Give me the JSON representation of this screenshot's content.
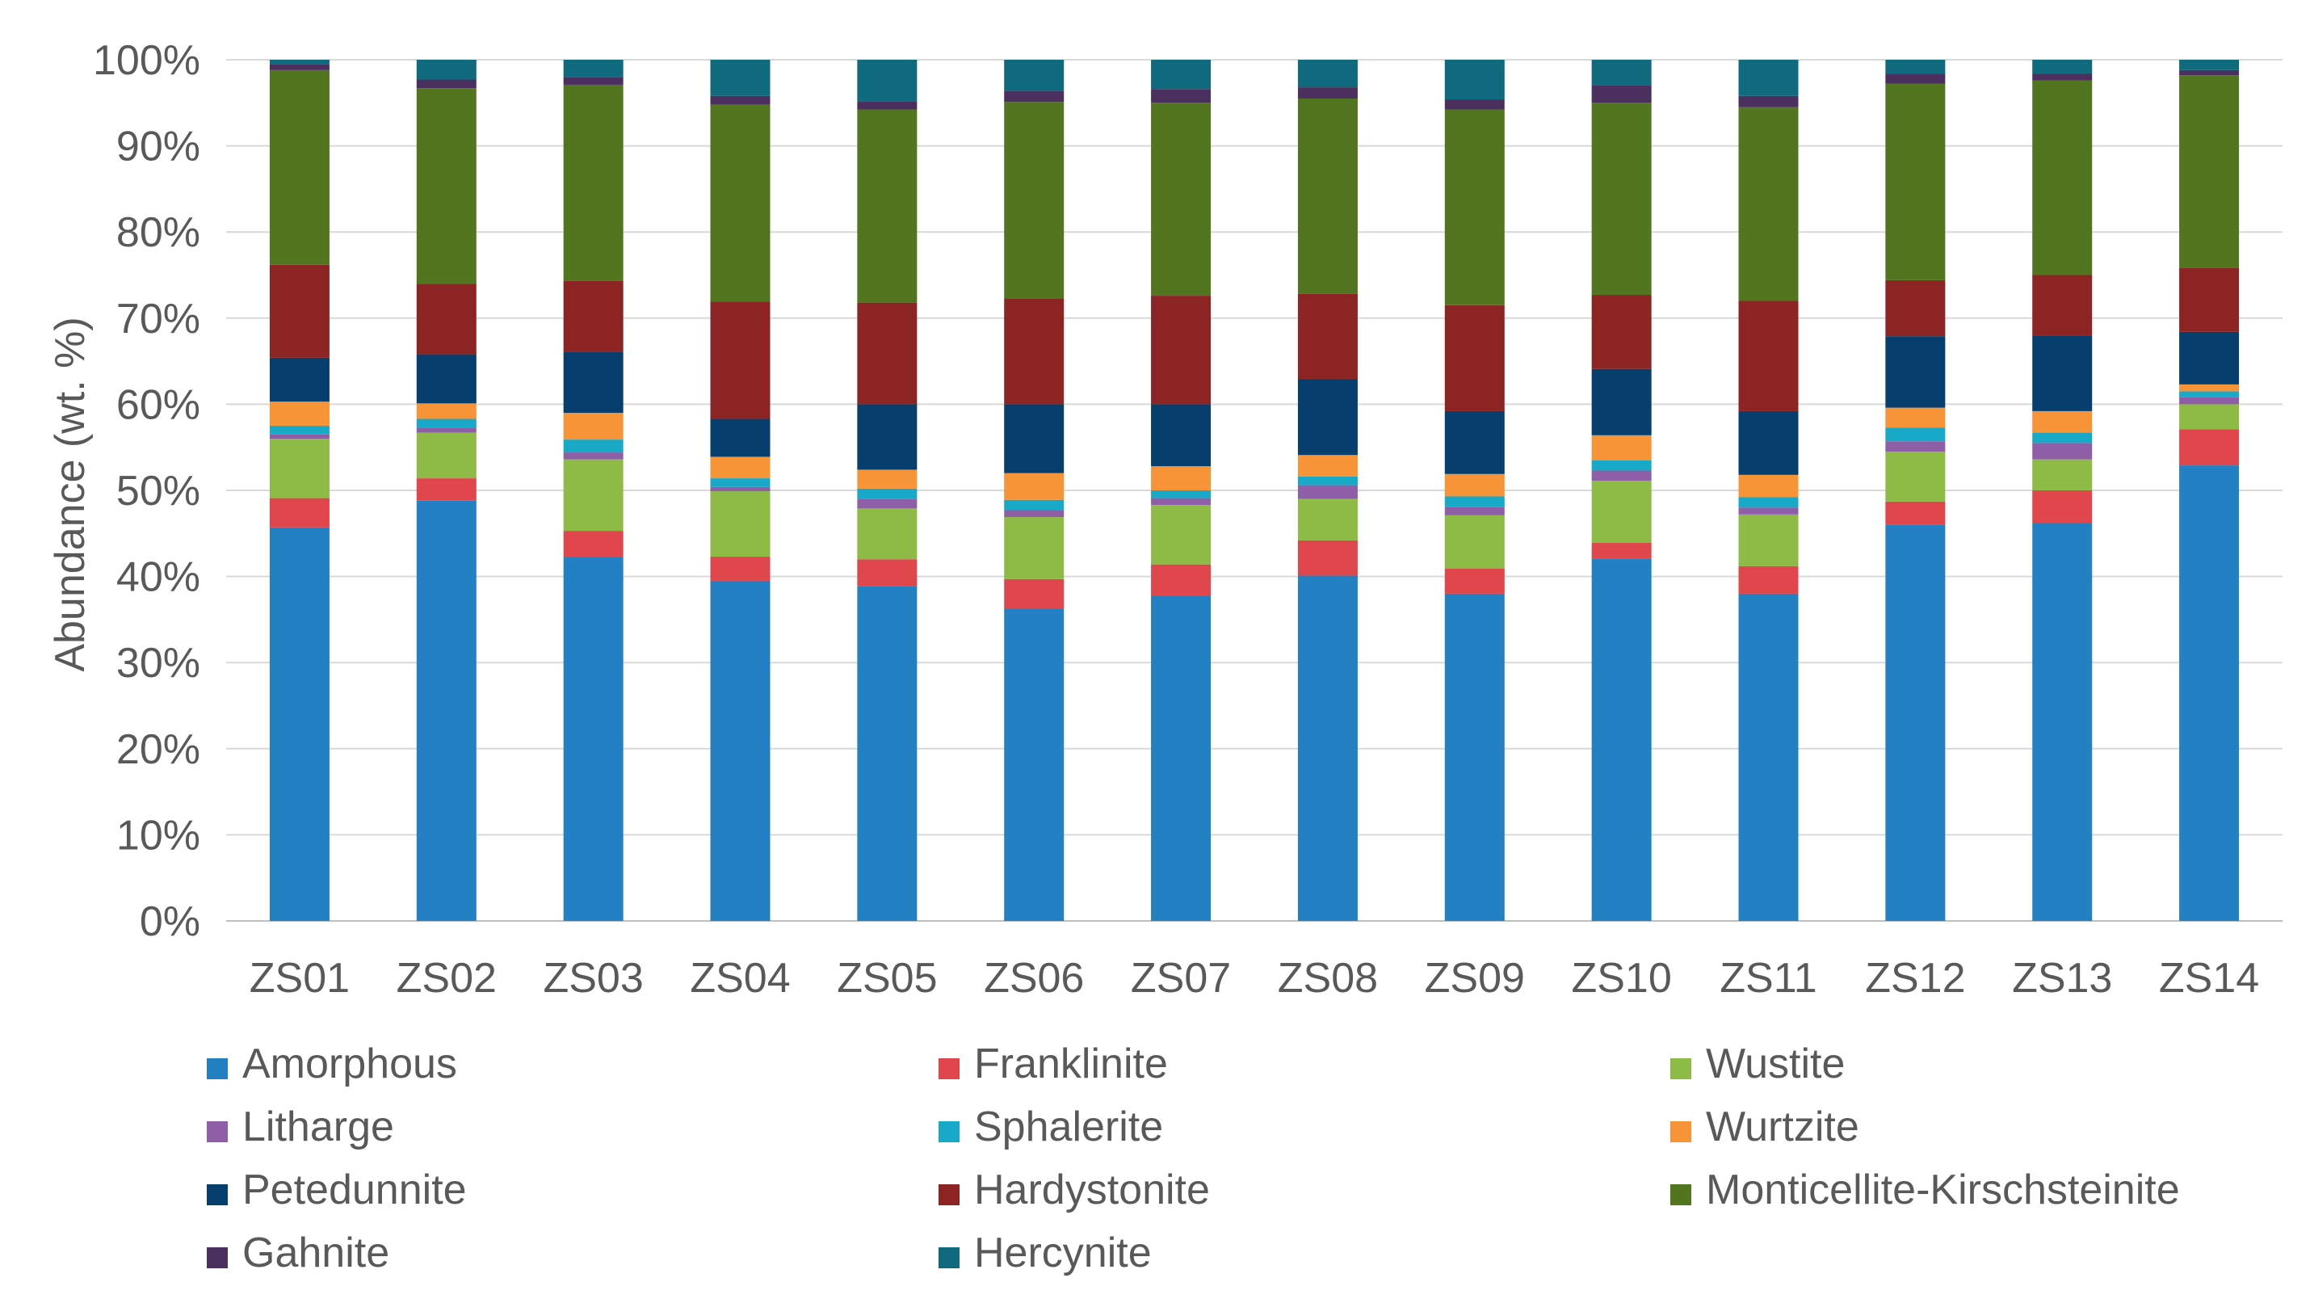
{
  "chart_data": {
    "type": "stacked-bar-100",
    "title": "",
    "xlabel": "",
    "ylabel": "Abundance (wt. %)",
    "ylim": [
      0,
      100
    ],
    "ytick_labels": [
      "0%",
      "10%",
      "20%",
      "30%",
      "40%",
      "50%",
      "60%",
      "70%",
      "80%",
      "90%",
      "100%"
    ],
    "grid": true,
    "legend_position": "bottom",
    "categories": [
      "ZS01",
      "ZS02",
      "ZS03",
      "ZS04",
      "ZS05",
      "ZS06",
      "ZS07",
      "ZS08",
      "ZS09",
      "ZS10",
      "ZS11",
      "ZS12",
      "ZS13",
      "ZS14"
    ],
    "series": [
      {
        "name": "Amorphous",
        "color": "#2381c3",
        "values": [
          45.7,
          48.8,
          42.3,
          39.5,
          38.9,
          36.3,
          37.8,
          40.1,
          38.0,
          42.1,
          38.0,
          46.0,
          46.2,
          52.9
        ]
      },
      {
        "name": "Franklinite",
        "color": "#e0474c",
        "values": [
          3.4,
          2.6,
          3.0,
          2.8,
          3.1,
          3.4,
          3.6,
          4.1,
          2.9,
          1.8,
          3.2,
          2.7,
          3.8,
          4.2
        ]
      },
      {
        "name": "Wustite",
        "color": "#8dbb46",
        "values": [
          6.9,
          5.3,
          8.3,
          7.6,
          5.9,
          7.2,
          6.9,
          4.8,
          6.2,
          7.2,
          6.0,
          5.8,
          3.6,
          2.9
        ]
      },
      {
        "name": "Litharge",
        "color": "#8e5fa7",
        "values": [
          0.5,
          0.6,
          0.8,
          0.5,
          1.1,
          0.8,
          0.8,
          1.6,
          1.0,
          1.2,
          0.8,
          1.2,
          1.9,
          0.8
        ]
      },
      {
        "name": "Sphalerite",
        "color": "#18a9c8",
        "values": [
          1.0,
          1.0,
          1.5,
          1.0,
          1.2,
          1.2,
          0.9,
          1.0,
          1.2,
          1.2,
          1.2,
          1.6,
          1.2,
          0.7
        ]
      },
      {
        "name": "Wurtzite",
        "color": "#f79437",
        "values": [
          2.8,
          1.8,
          3.1,
          2.5,
          2.2,
          3.1,
          2.8,
          2.5,
          2.6,
          2.9,
          2.6,
          2.3,
          2.5,
          0.8
        ]
      },
      {
        "name": "Petedunnite",
        "color": "#063f6e",
        "values": [
          5.1,
          5.7,
          7.1,
          4.4,
          7.6,
          8.0,
          7.2,
          8.8,
          7.3,
          7.7,
          7.4,
          8.3,
          8.8,
          6.1
        ]
      },
      {
        "name": "Hardystonite",
        "color": "#8b2423",
        "values": [
          10.8,
          8.2,
          8.2,
          13.6,
          11.8,
          12.3,
          12.6,
          9.9,
          12.3,
          8.6,
          12.8,
          6.5,
          7.0,
          7.4
        ]
      },
      {
        "name": "Monticellite-Kirschsteinite",
        "color": "#52761f",
        "values": [
          22.6,
          22.7,
          22.8,
          22.9,
          22.4,
          22.8,
          22.4,
          22.7,
          22.7,
          22.3,
          22.5,
          22.8,
          22.6,
          22.4
        ]
      },
      {
        "name": "Gahnite",
        "color": "#4b2f5e",
        "values": [
          0.7,
          1.0,
          0.9,
          1.0,
          1.0,
          1.3,
          1.6,
          1.3,
          1.2,
          2.0,
          1.3,
          1.2,
          0.8,
          0.6
        ]
      },
      {
        "name": "Hercynite",
        "color": "#0e6a7c",
        "values": [
          0.5,
          2.3,
          2.0,
          4.2,
          4.8,
          3.6,
          3.4,
          3.2,
          4.6,
          3.0,
          4.2,
          1.6,
          1.6,
          1.2
        ]
      }
    ]
  }
}
